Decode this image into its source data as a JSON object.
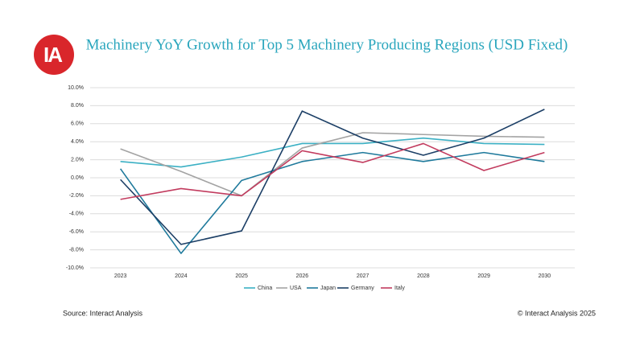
{
  "logo": "IA",
  "chart_data": {
    "type": "line",
    "title": "Machinery YoY Growth for Top 5 Machinery Producing Regions (USD Fixed)",
    "categories": [
      "2023",
      "2024",
      "2025",
      "2026",
      "2027",
      "2028",
      "2029",
      "2030"
    ],
    "series": [
      {
        "name": "China",
        "color": "#3bb0c4",
        "values": [
          1.8,
          1.2,
          2.3,
          3.8,
          3.8,
          4.4,
          3.8,
          3.7
        ]
      },
      {
        "name": "USA",
        "color": "#a3a3a3",
        "values": [
          3.2,
          0.7,
          -2.0,
          3.3,
          5.0,
          4.8,
          4.6,
          4.5
        ]
      },
      {
        "name": "Japan",
        "color": "#1f7a9c",
        "values": [
          1.0,
          -8.4,
          -0.3,
          1.8,
          2.8,
          1.8,
          2.8,
          1.8
        ]
      },
      {
        "name": "Germany",
        "color": "#1c3f66",
        "values": [
          -0.2,
          -7.4,
          -5.9,
          7.4,
          4.4,
          2.5,
          4.4,
          7.6
        ]
      },
      {
        "name": "Italy",
        "color": "#c23b5e",
        "values": [
          -2.4,
          -1.2,
          -2.0,
          3.0,
          1.7,
          3.8,
          0.8,
          2.8
        ]
      }
    ],
    "ylim": [
      -10,
      10
    ],
    "yticks": [
      {
        "value": -10,
        "label": "-10.0%"
      },
      {
        "value": -8,
        "label": "-8.0%"
      },
      {
        "value": -6,
        "label": "-6.0%"
      },
      {
        "value": -4,
        "label": "-4.0%"
      },
      {
        "value": -2,
        "label": "-2.0%"
      },
      {
        "value": 0,
        "label": "0.0%"
      },
      {
        "value": 2,
        "label": "2.0%"
      },
      {
        "value": 4,
        "label": "4.0%"
      },
      {
        "value": 6,
        "label": "6.0%"
      },
      {
        "value": 8,
        "label": "8.0%"
      },
      {
        "value": 10,
        "label": "10.0%"
      }
    ],
    "grid": true,
    "source": "Source: Interact Analysis",
    "copyright": "© Interact Analysis 2025"
  }
}
